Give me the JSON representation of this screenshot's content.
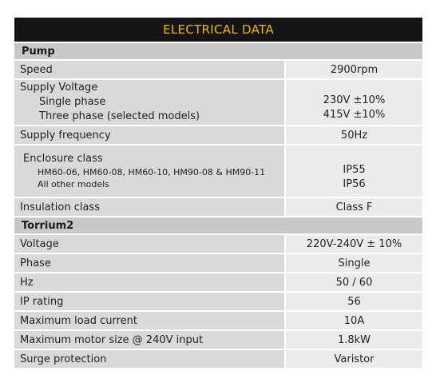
{
  "title": "ELECTRICAL DATA",
  "pump": {
    "heading": "Pump",
    "speed": {
      "label": "Speed",
      "value": "2900rpm"
    },
    "supply_voltage": {
      "label": "Supply Voltage",
      "single_label": "Single phase",
      "three_label": "Three phase (selected models)",
      "single_value": "230V ±10%",
      "three_value": "415V ±10%"
    },
    "supply_frequency": {
      "label": "Supply frequency",
      "value": "50Hz"
    },
    "enclosure": {
      "label": "Enclosure class",
      "models_label": "HM60-06, HM60-08, HM60-10, HM90-08 & HM90-11",
      "other_label": "All other models",
      "models_value": "IP55",
      "other_value": "IP56"
    },
    "insulation": {
      "label": "Insulation class",
      "value": "Class F"
    }
  },
  "torrium": {
    "heading": "Torrium2",
    "rows": [
      {
        "label": "Voltage",
        "value": "220V-240V ± 10%"
      },
      {
        "label": "Phase",
        "value": "Single"
      },
      {
        "label": "Hz",
        "value": "50 / 60"
      },
      {
        "label": "IP rating",
        "value": "56"
      },
      {
        "label": "Maximum load current",
        "value": "10A"
      },
      {
        "label": "Maximum motor size @ 240V input",
        "value": "1.8kW"
      },
      {
        "label": "Surge protection",
        "value": "Varistor"
      }
    ]
  }
}
